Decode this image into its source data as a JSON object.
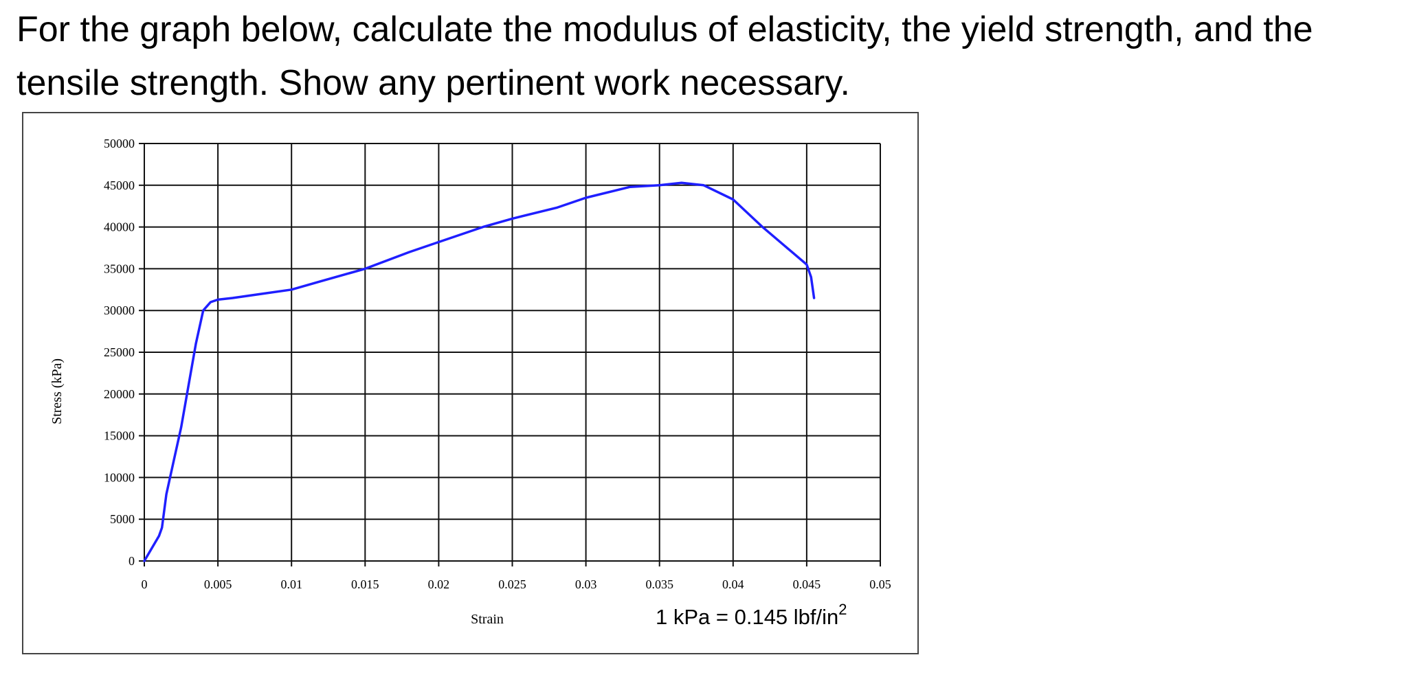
{
  "question": {
    "text": "For the graph below, calculate the modulus of elasticity, the yield strength, and the tensile strength. Show any pertinent work necessary."
  },
  "chart_data": {
    "type": "line",
    "title": "",
    "xlabel": "Strain",
    "ylabel": "Stress (kPa)",
    "xlim": [
      0,
      0.05
    ],
    "ylim": [
      0,
      50000
    ],
    "grid": true,
    "line_color": "#1f1fff",
    "x_ticks": [
      {
        "value": 0,
        "label": "0"
      },
      {
        "value": 0.005,
        "label": "0.005"
      },
      {
        "value": 0.01,
        "label": "0.01"
      },
      {
        "value": 0.015,
        "label": "0.015"
      },
      {
        "value": 0.02,
        "label": "0.02"
      },
      {
        "value": 0.025,
        "label": "0.025"
      },
      {
        "value": 0.03,
        "label": "0.03"
      },
      {
        "value": 0.035,
        "label": "0.035"
      },
      {
        "value": 0.04,
        "label": "0.04"
      },
      {
        "value": 0.045,
        "label": "0.045"
      },
      {
        "value": 0.05,
        "label": "0.05"
      }
    ],
    "y_ticks": [
      {
        "value": 0,
        "label": "0"
      },
      {
        "value": 5000,
        "label": "5000"
      },
      {
        "value": 10000,
        "label": "10000"
      },
      {
        "value": 15000,
        "label": "15000"
      },
      {
        "value": 20000,
        "label": "20000"
      },
      {
        "value": 25000,
        "label": "25000"
      },
      {
        "value": 30000,
        "label": "30000"
      },
      {
        "value": 35000,
        "label": "35000"
      },
      {
        "value": 40000,
        "label": "40000"
      },
      {
        "value": 45000,
        "label": "45000"
      },
      {
        "value": 50000,
        "label": "50000"
      }
    ],
    "series": [
      {
        "x": [
          0,
          0.0005,
          0.001,
          0.0012,
          0.0015,
          0.002,
          0.0025,
          0.003,
          0.0035,
          0.004,
          0.0045,
          0.005,
          0.006,
          0.008,
          0.01,
          0.012,
          0.015,
          0.018,
          0.02,
          0.023,
          0.025,
          0.028,
          0.03,
          0.033,
          0.035,
          0.0365,
          0.038,
          0.04,
          0.042,
          0.044,
          0.045,
          0.0453,
          0.0455
        ],
        "y": [
          0,
          1500,
          3000,
          4000,
          8000,
          12000,
          16000,
          21000,
          26000,
          30000,
          31000,
          31300,
          31500,
          32000,
          32500,
          33500,
          35000,
          37000,
          38200,
          40000,
          41000,
          42300,
          43500,
          44800,
          45000,
          45300,
          45000,
          43300,
          40000,
          37000,
          35500,
          34000,
          31500
        ]
      }
    ],
    "annotation": "1 kPa = 0.145 lbf/in",
    "annotation_superscript": "2"
  }
}
